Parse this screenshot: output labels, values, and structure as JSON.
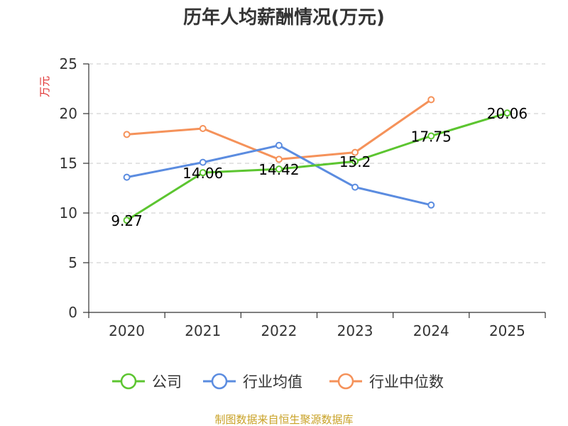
{
  "chart_data": {
    "type": "line",
    "title": "历年人均薪酬情况(万元)",
    "ylabel": "万元",
    "xlabel": "",
    "categories": [
      "2020",
      "2021",
      "2022",
      "2023",
      "2024",
      "2025"
    ],
    "ylim": [
      0,
      25
    ],
    "yticks": [
      0,
      5,
      10,
      15,
      20,
      25
    ],
    "grid": true,
    "legend_position": "bottom",
    "series": [
      {
        "name": "公司",
        "color": "#5cc530",
        "values": [
          9.27,
          14.06,
          14.42,
          15.2,
          17.75,
          20.06
        ],
        "labels": [
          "9.27",
          "14.06",
          "14.42",
          "15.2",
          "17.75",
          "20.06"
        ]
      },
      {
        "name": "行业均值",
        "color": "#5b8ce0",
        "values": [
          13.6,
          15.1,
          16.8,
          12.6,
          10.8,
          null
        ]
      },
      {
        "name": "行业中位数",
        "color": "#f5925a",
        "values": [
          17.9,
          18.5,
          15.4,
          16.1,
          21.4,
          null
        ]
      }
    ],
    "source": "制图数据来自恒生聚源数据库"
  }
}
